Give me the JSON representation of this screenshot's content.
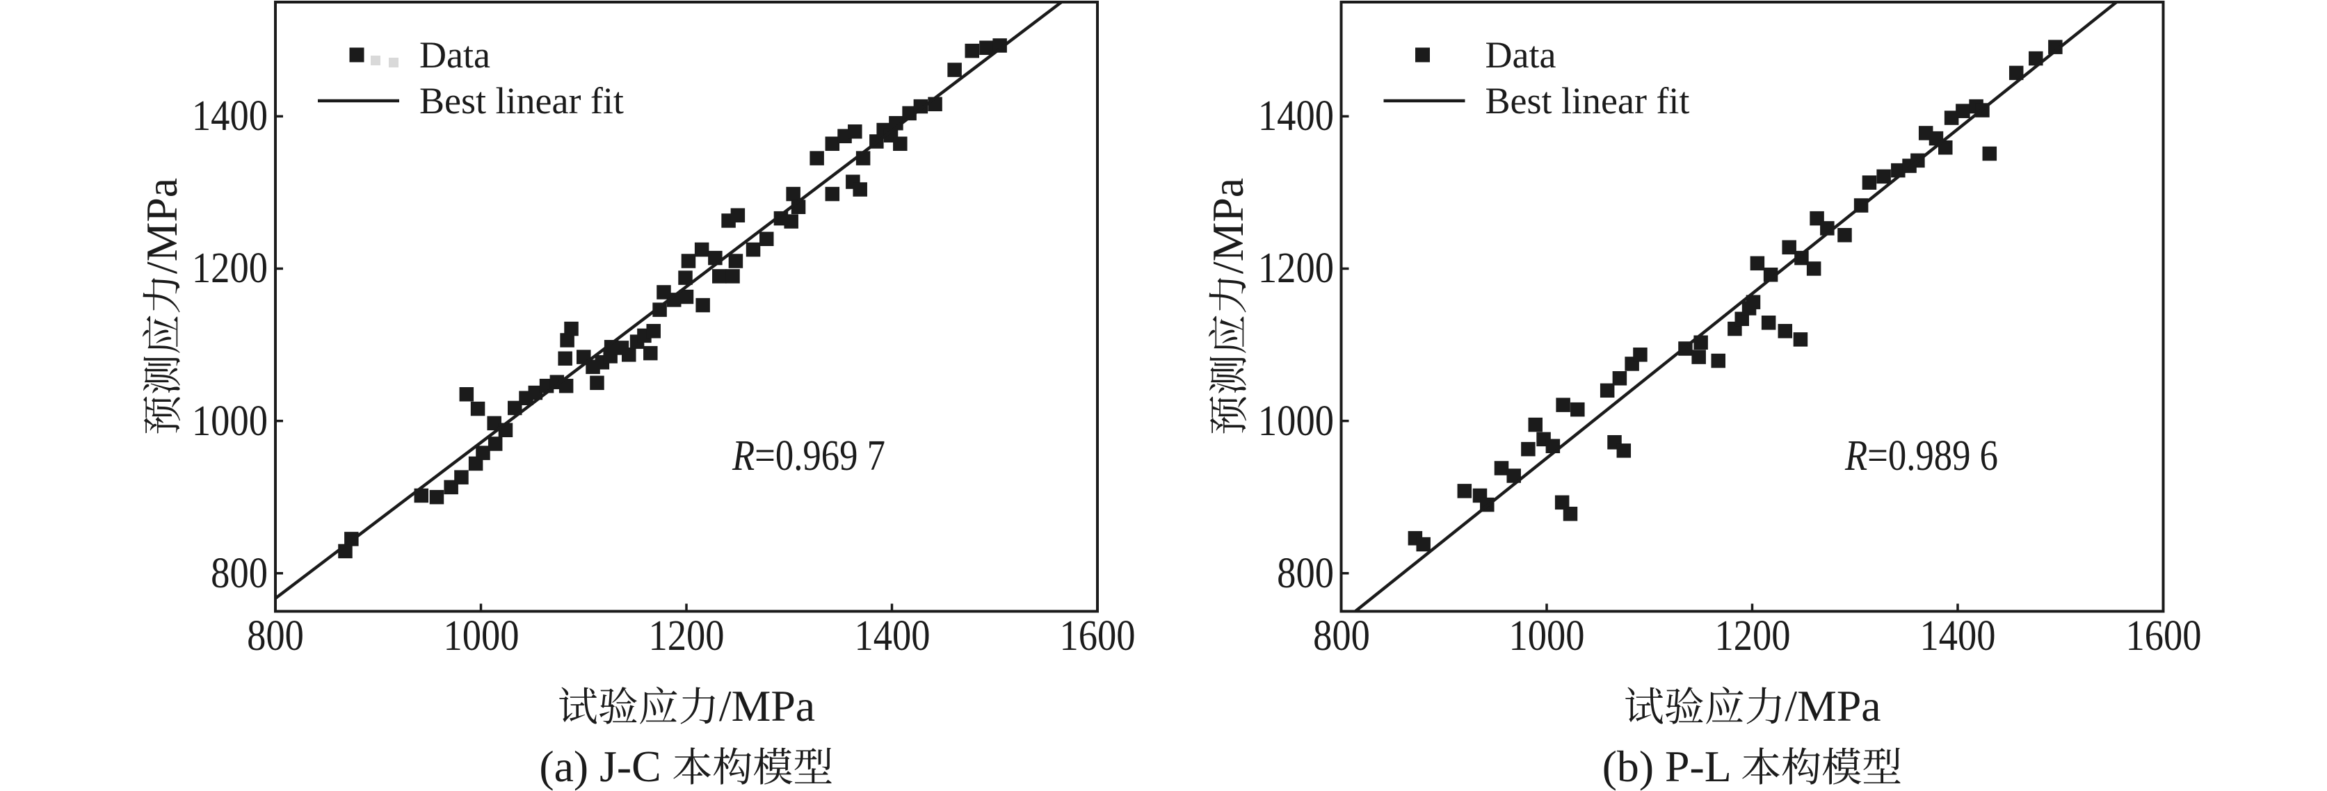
{
  "figure": {
    "background": "#ffffff",
    "ink_color": "#1b1b1b"
  },
  "chart_data": [
    {
      "type": "scatter",
      "panel_caption": "(a) J-C 本构模型",
      "xlabel": "试验应力/MPa",
      "ylabel": "预测应力/MPa",
      "xlim": [
        800,
        1600
      ],
      "ylim": [
        750,
        1550
      ],
      "x_ticks": [
        800,
        1000,
        1200,
        1400,
        1600
      ],
      "y_ticks": [
        800,
        1000,
        1200,
        1400
      ],
      "grid": false,
      "legend_position": "upper-left-inside",
      "annotation": {
        "symbol": "R",
        "rest": "=0.969 7"
      },
      "series": [
        {
          "name": "Data",
          "kind": "scatter",
          "marker": "square",
          "points": [
            [
              868,
              829
            ],
            [
              874,
              845
            ],
            [
              942,
              902
            ],
            [
              957,
              900
            ],
            [
              971,
              913
            ],
            [
              981,
              926
            ],
            [
              986,
              1035
            ],
            [
              995,
              944
            ],
            [
              997,
              1016
            ],
            [
              1002,
              958
            ],
            [
              1013,
              997
            ],
            [
              1014,
              970
            ],
            [
              1024,
              988
            ],
            [
              1033,
              1017
            ],
            [
              1044,
              1030
            ],
            [
              1053,
              1037
            ],
            [
              1064,
              1046
            ],
            [
              1074,
              1051
            ],
            [
              1082,
              1082
            ],
            [
              1083,
              1046
            ],
            [
              1084,
              1106
            ],
            [
              1088,
              1121
            ],
            [
              1100,
              1084
            ],
            [
              1109,
              1071
            ],
            [
              1113,
              1050
            ],
            [
              1118,
              1077
            ],
            [
              1126,
              1085
            ],
            [
              1127,
              1097
            ],
            [
              1137,
              1096
            ],
            [
              1144,
              1087
            ],
            [
              1152,
              1104
            ],
            [
              1159,
              1112
            ],
            [
              1165,
              1089
            ],
            [
              1168,
              1118
            ],
            [
              1174,
              1146
            ],
            [
              1178,
              1169
            ],
            [
              1188,
              1159
            ],
            [
              1199,
              1188
            ],
            [
              1200,
              1163
            ],
            [
              1202,
              1210
            ],
            [
              1215,
              1225
            ],
            [
              1216,
              1152
            ],
            [
              1228,
              1214
            ],
            [
              1232,
              1190
            ],
            [
              1241,
              1263
            ],
            [
              1245,
              1190
            ],
            [
              1248,
              1210
            ],
            [
              1250,
              1270
            ],
            [
              1265,
              1225
            ],
            [
              1278,
              1239
            ],
            [
              1292,
              1266
            ],
            [
              1302,
              1262
            ],
            [
              1304,
              1298
            ],
            [
              1309,
              1281
            ],
            [
              1327,
              1345
            ],
            [
              1342,
              1298
            ],
            [
              1342,
              1364
            ],
            [
              1354,
              1374
            ],
            [
              1362,
              1314
            ],
            [
              1364,
              1380
            ],
            [
              1369,
              1304
            ],
            [
              1372,
              1345
            ],
            [
              1385,
              1367
            ],
            [
              1392,
              1382
            ],
            [
              1399,
              1375
            ],
            [
              1404,
              1391
            ],
            [
              1408,
              1364
            ],
            [
              1417,
              1404
            ],
            [
              1428,
              1413
            ],
            [
              1442,
              1416
            ],
            [
              1461,
              1461
            ],
            [
              1478,
              1486
            ],
            [
              1492,
              1490
            ],
            [
              1505,
              1493
            ]
          ]
        },
        {
          "name": "Best linear fit",
          "kind": "line",
          "from": [
            800,
            767
          ],
          "to": [
            1565,
            1550
          ]
        }
      ],
      "legend_ghost_marks": [
        [
          540,
          87
        ],
        [
          566,
          90
        ]
      ]
    },
    {
      "type": "scatter",
      "panel_caption": "(b) P-L 本构模型",
      "xlabel": "试验应力/MPa",
      "ylabel": "预测应力/MPa",
      "xlim": [
        800,
        1600
      ],
      "ylim": [
        750,
        1550
      ],
      "x_ticks": [
        800,
        1000,
        1200,
        1400,
        1600
      ],
      "y_ticks": [
        800,
        1000,
        1200,
        1400
      ],
      "grid": false,
      "legend_position": "upper-left-inside",
      "annotation": {
        "symbol": "R",
        "rest": "=0.989 6"
      },
      "series": [
        {
          "name": "Data",
          "kind": "scatter",
          "marker": "square",
          "points": [
            [
              872,
              846
            ],
            [
              880,
              838
            ],
            [
              920,
              908
            ],
            [
              935,
              902
            ],
            [
              942,
              890
            ],
            [
              956,
              938
            ],
            [
              968,
              928
            ],
            [
              982,
              963
            ],
            [
              989,
              995
            ],
            [
              997,
              976
            ],
            [
              1006,
              967
            ],
            [
              1015,
              893
            ],
            [
              1016,
              1021
            ],
            [
              1023,
              878
            ],
            [
              1030,
              1015
            ],
            [
              1059,
              1040
            ],
            [
              1066,
              972
            ],
            [
              1071,
              1056
            ],
            [
              1075,
              961
            ],
            [
              1083,
              1075
            ],
            [
              1091,
              1087
            ],
            [
              1135,
              1095
            ],
            [
              1148,
              1084
            ],
            [
              1150,
              1103
            ],
            [
              1167,
              1079
            ],
            [
              1183,
              1121
            ],
            [
              1190,
              1134
            ],
            [
              1197,
              1148
            ],
            [
              1201,
              1156
            ],
            [
              1205,
              1207
            ],
            [
              1216,
              1129
            ],
            [
              1218,
              1192
            ],
            [
              1232,
              1118
            ],
            [
              1236,
              1228
            ],
            [
              1247,
              1107
            ],
            [
              1248,
              1214
            ],
            [
              1260,
              1200
            ],
            [
              1263,
              1266
            ],
            [
              1273,
              1253
            ],
            [
              1290,
              1244
            ],
            [
              1306,
              1283
            ],
            [
              1314,
              1313
            ],
            [
              1328,
              1321
            ],
            [
              1342,
              1329
            ],
            [
              1353,
              1335
            ],
            [
              1361,
              1342
            ],
            [
              1369,
              1378
            ],
            [
              1379,
              1371
            ],
            [
              1388,
              1359
            ],
            [
              1394,
              1398
            ],
            [
              1405,
              1407
            ],
            [
              1418,
              1413
            ],
            [
              1424,
              1408
            ],
            [
              1431,
              1351
            ],
            [
              1457,
              1457
            ],
            [
              1476,
              1476
            ],
            [
              1495,
              1491
            ]
          ]
        },
        {
          "name": "Best linear fit",
          "kind": "line",
          "from": [
            813.7,
            750
          ],
          "to": [
            1554.5,
            1550
          ]
        }
      ],
      "legend_ghost_marks": []
    }
  ]
}
